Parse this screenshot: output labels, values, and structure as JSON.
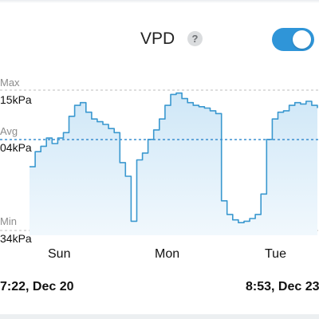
{
  "header": {
    "title": "VPD",
    "help_icon": "question-mark-icon",
    "toggle_on": true,
    "accent_color": "#2f95d8"
  },
  "labels": {
    "max": "Max",
    "max_value": "15kPa",
    "avg": "Avg",
    "avg_value": "04kPa",
    "min": "Min",
    "min_value": "34kPa"
  },
  "range": {
    "start": "7:22, Dec 20",
    "end": "8:53, Dec 23"
  },
  "chart_data": {
    "type": "area",
    "x_ticks": [
      "Sun",
      "Mon",
      "Tue"
    ],
    "y_reference_lines": [
      "Max",
      "Avg",
      "Min"
    ],
    "line_color": "#3a98cf",
    "fill_color": "#d8ecf8",
    "grid": false,
    "series": [
      {
        "values": [
          0.45,
          0.56,
          0.6,
          0.66,
          0.62,
          0.66,
          0.7,
          0.82,
          0.9,
          0.92,
          0.85,
          0.8,
          0.78,
          0.76,
          0.73,
          0.7,
          0.48,
          0.38,
          0.05,
          0.5,
          0.55,
          0.65,
          0.72,
          0.8,
          0.9,
          0.98,
          0.99,
          0.95,
          0.92,
          0.9,
          0.89,
          0.88,
          0.86,
          0.84,
          0.2,
          0.1,
          0.06,
          0.04,
          0.05,
          0.07,
          0.1,
          0.25,
          0.65,
          0.8,
          0.85,
          0.86,
          0.9,
          0.92,
          0.91,
          0.93,
          0.9,
          0.88
        ]
      }
    ]
  }
}
